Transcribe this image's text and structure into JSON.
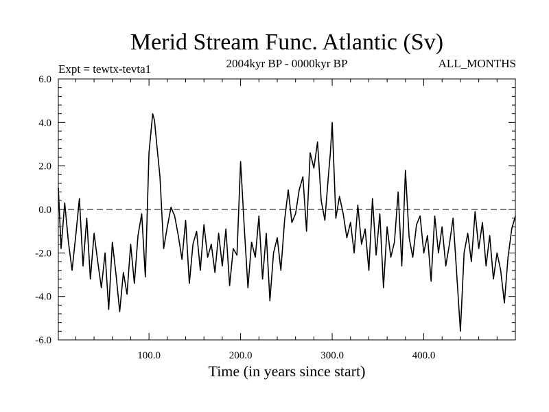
{
  "chart_data": {
    "type": "line",
    "title": "Merid Stream Func. Atlantic (Sv)",
    "subtitle_left": "Expt = tewtx-tevta1",
    "subtitle_center": "2004kyr BP - 0000kyr BP",
    "subtitle_right": "ALL_MONTHS",
    "xlabel": "Time (in years since start)",
    "ylabel": "",
    "xlim": [
      1,
      500
    ],
    "ylim": [
      -6,
      6
    ],
    "x_ticks": [
      100,
      200,
      300,
      400
    ],
    "x_tick_labels": [
      "100.0",
      "200.0",
      "300.0",
      "400.0"
    ],
    "y_ticks": [
      -6,
      -4,
      -2,
      0,
      2,
      4,
      6
    ],
    "y_tick_labels": [
      "-6.0",
      "-4.0",
      "-2.0",
      "0.0",
      "2.0",
      "4.0",
      "6.0"
    ],
    "reference_line": {
      "y": 0,
      "style": "dashed"
    },
    "series": [
      {
        "name": "Merid Stream Func. Atlantic",
        "x": [
          1,
          4,
          8,
          12,
          16,
          20,
          24,
          28,
          32,
          36,
          40,
          44,
          48,
          52,
          56,
          60,
          64,
          68,
          72,
          76,
          80,
          84,
          88,
          92,
          96,
          100,
          104,
          106,
          108,
          112,
          116,
          120,
          124,
          128,
          132,
          136,
          140,
          144,
          148,
          152,
          156,
          160,
          164,
          168,
          172,
          176,
          180,
          184,
          188,
          192,
          196,
          200,
          204,
          208,
          212,
          216,
          220,
          224,
          228,
          232,
          236,
          240,
          244,
          248,
          252,
          256,
          260,
          264,
          268,
          272,
          276,
          280,
          284,
          288,
          292,
          296,
          298,
          300,
          304,
          308,
          312,
          316,
          320,
          324,
          328,
          332,
          336,
          340,
          344,
          348,
          352,
          356,
          360,
          364,
          368,
          372,
          376,
          380,
          384,
          388,
          392,
          396,
          400,
          404,
          408,
          412,
          416,
          420,
          424,
          428,
          432,
          436,
          440,
          444,
          448,
          452,
          456,
          460,
          464,
          468,
          472,
          476,
          480,
          484,
          488,
          492,
          496,
          500
        ],
        "values": [
          1.0,
          -1.8,
          0.3,
          -1.5,
          -2.8,
          -1.2,
          0.5,
          -2.6,
          -0.4,
          -3.2,
          -1.1,
          -2.4,
          -3.6,
          -2.0,
          -4.6,
          -1.5,
          -3.0,
          -4.7,
          -2.9,
          -3.9,
          -1.6,
          -3.4,
          -1.2,
          -0.2,
          -3.1,
          2.6,
          4.4,
          4.1,
          3.2,
          1.5,
          -1.8,
          -0.8,
          0.1,
          -0.3,
          -1.2,
          -2.3,
          -0.5,
          -3.4,
          -1.6,
          -1.0,
          -2.8,
          -0.7,
          -2.2,
          -1.6,
          -2.9,
          -1.1,
          -2.6,
          -0.9,
          -3.5,
          -1.8,
          -2.1,
          2.2,
          -0.8,
          -3.6,
          -1.5,
          -2.2,
          -0.3,
          -3.2,
          -1.1,
          -4.2,
          -2.0,
          -1.3,
          -2.8,
          -0.5,
          0.9,
          -0.6,
          -0.2,
          0.9,
          1.5,
          -1.0,
          2.6,
          1.9,
          3.1,
          0.4,
          -0.5,
          1.6,
          2.6,
          4.0,
          -0.4,
          0.6,
          -0.2,
          -1.3,
          -0.6,
          -2.0,
          0.2,
          -1.6,
          -0.9,
          -2.8,
          0.5,
          -2.1,
          -0.2,
          -3.6,
          -0.8,
          -2.2,
          -1.5,
          0.8,
          -2.6,
          1.8,
          -1.3,
          -2.2,
          -0.7,
          -0.3,
          -2.0,
          -1.2,
          -3.3,
          -0.3,
          -2.0,
          -0.8,
          -2.6,
          -1.6,
          -0.4,
          -3.0,
          -5.6,
          -2.0,
          -1.1,
          -2.4,
          -0.1,
          -1.8,
          -0.6,
          -2.6,
          -1.2,
          -3.2,
          -2.0,
          -2.8,
          -4.3,
          -2.2,
          -0.9,
          -0.3
        ]
      }
    ]
  }
}
